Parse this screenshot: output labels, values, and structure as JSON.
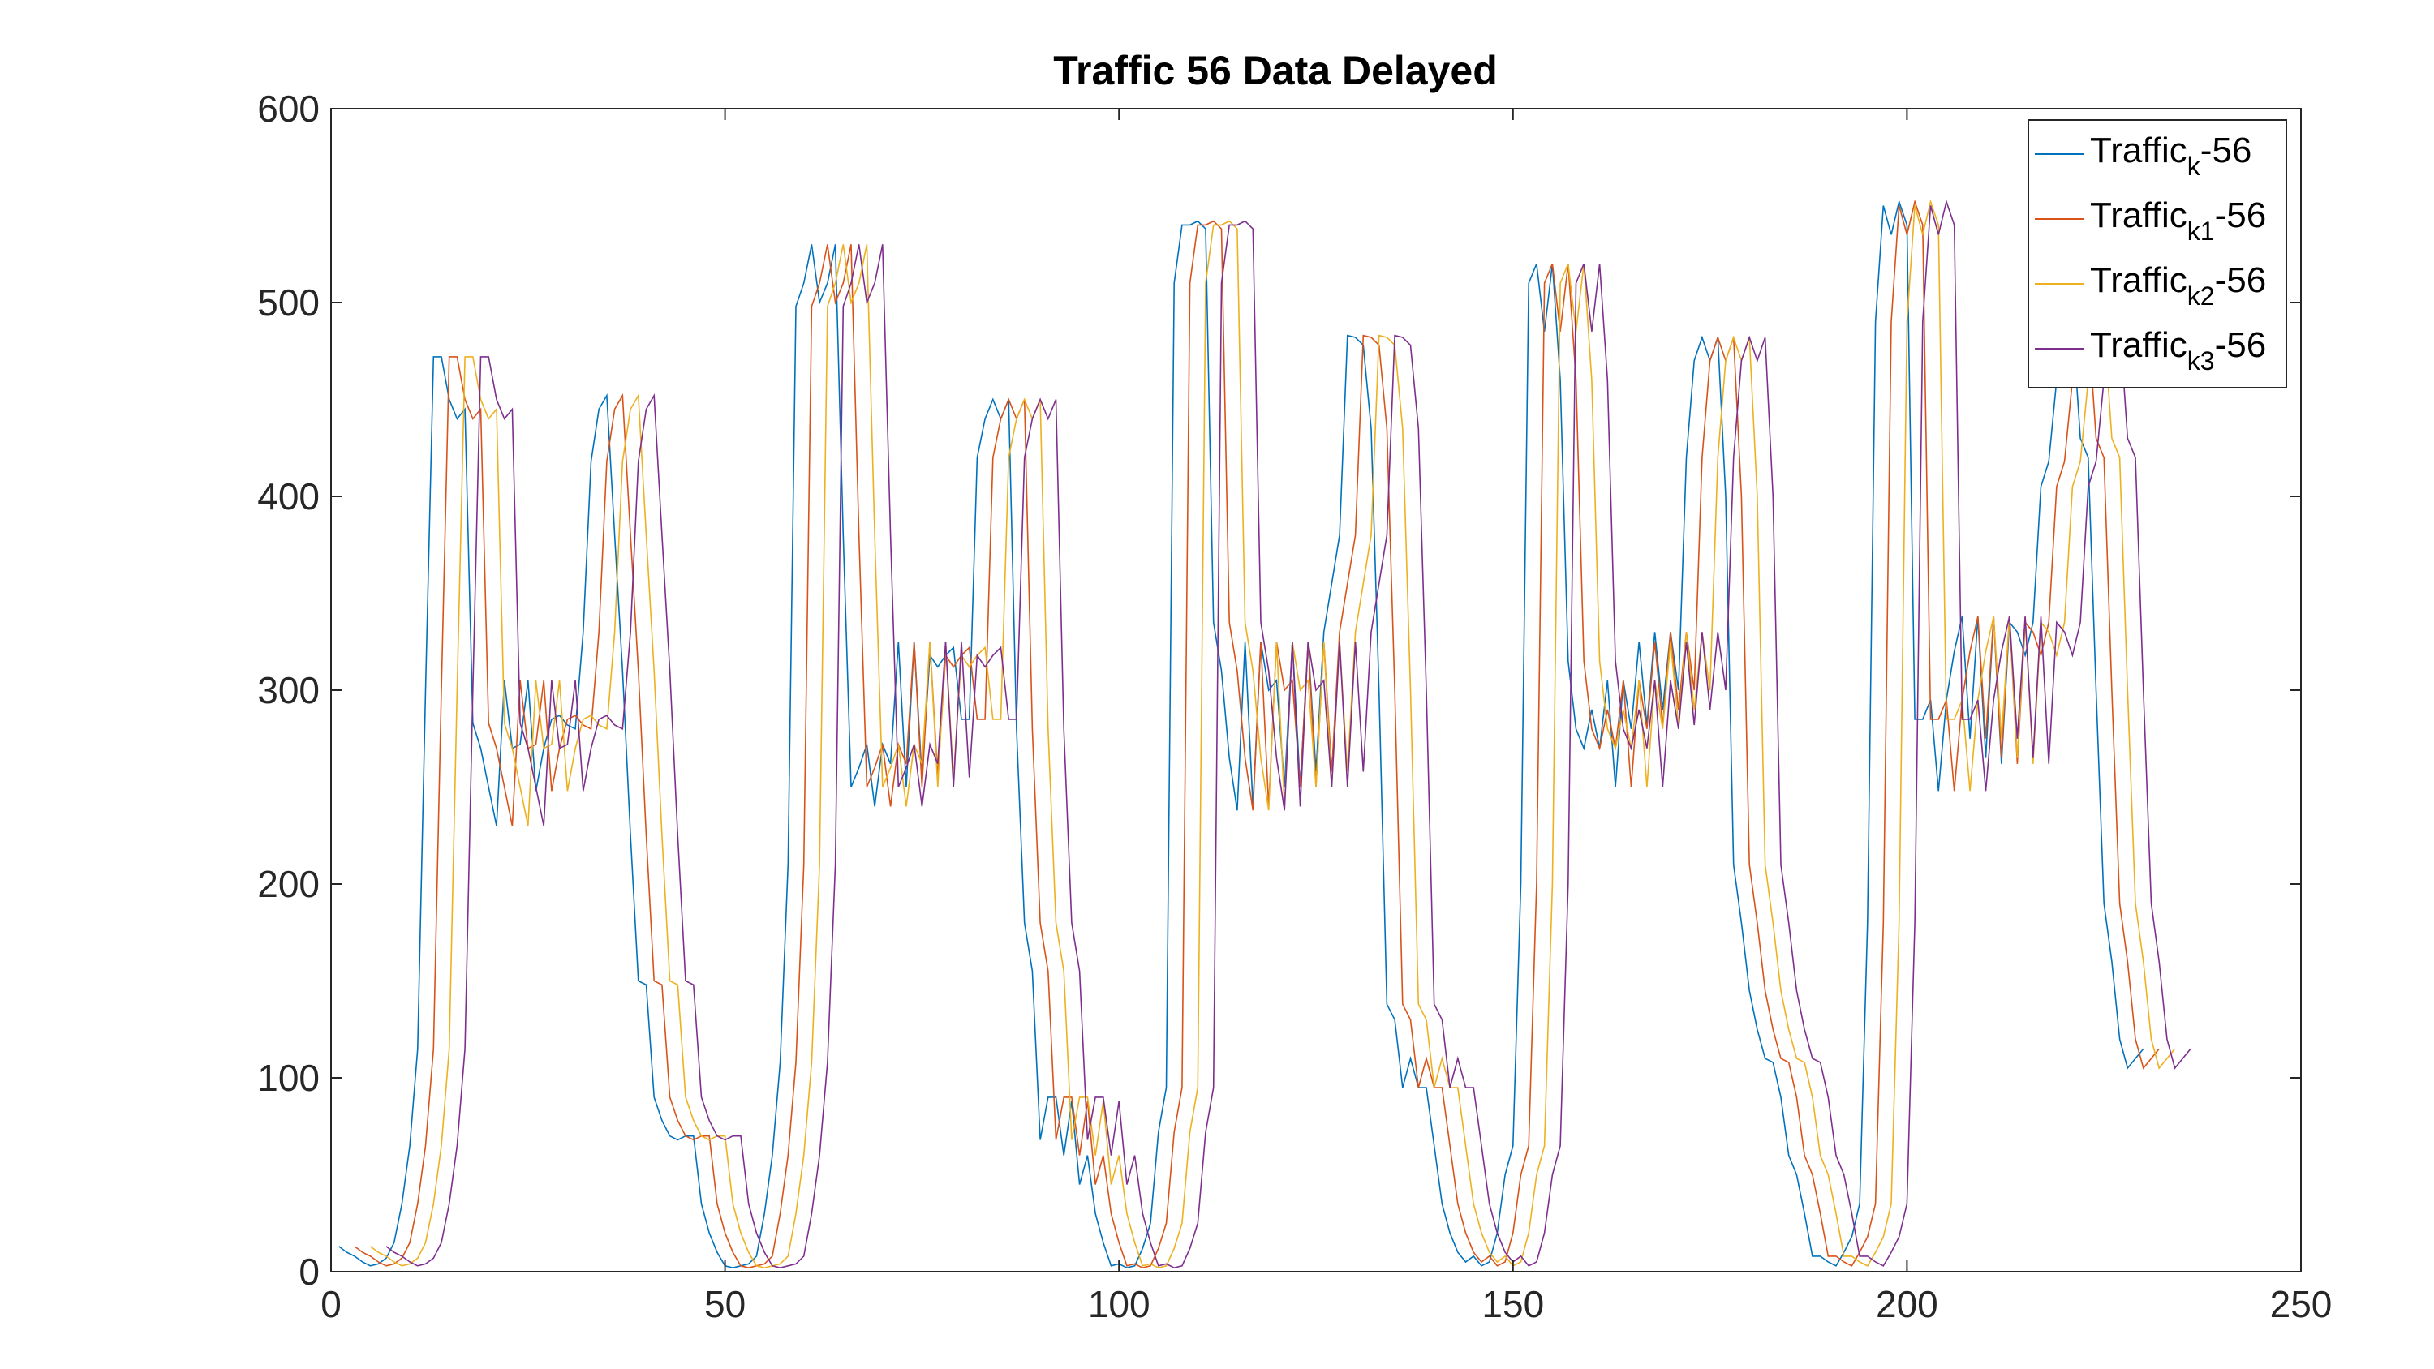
{
  "chart_data": {
    "type": "line",
    "title": "Traffic 56 Data Delayed",
    "xlabel": "",
    "ylabel": "",
    "xlim": [
      0,
      250
    ],
    "ylim": [
      0,
      600
    ],
    "x_ticks": [
      "0",
      "50",
      "100",
      "150",
      "200",
      "250"
    ],
    "y_ticks": [
      "0",
      "100",
      "200",
      "300",
      "400",
      "500",
      "600"
    ],
    "grid": false,
    "legend_position": "top-right",
    "colors": [
      "#0072BD",
      "#D95319",
      "#EDB120",
      "#7E2F8E"
    ],
    "base_series": [
      [
        1,
        13
      ],
      [
        2,
        10
      ],
      [
        3,
        8
      ],
      [
        4,
        5
      ],
      [
        5,
        3
      ],
      [
        6,
        4
      ],
      [
        7,
        7
      ],
      [
        8,
        15
      ],
      [
        9,
        35
      ],
      [
        10,
        65
      ],
      [
        11,
        115
      ],
      [
        12,
        300
      ],
      [
        13,
        472
      ],
      [
        14,
        472
      ],
      [
        15,
        450
      ],
      [
        16,
        440
      ],
      [
        17,
        445
      ],
      [
        18,
        283
      ],
      [
        19,
        270
      ],
      [
        20,
        250
      ],
      [
        21,
        230
      ],
      [
        22,
        305
      ],
      [
        23,
        270
      ],
      [
        24,
        272
      ],
      [
        25,
        305
      ],
      [
        26,
        248
      ],
      [
        27,
        270
      ],
      [
        28,
        285
      ],
      [
        29,
        287
      ],
      [
        30,
        282
      ],
      [
        31,
        280
      ],
      [
        32,
        330
      ],
      [
        33,
        418
      ],
      [
        34,
        445
      ],
      [
        35,
        452
      ],
      [
        36,
        380
      ],
      [
        37,
        310
      ],
      [
        38,
        225
      ],
      [
        39,
        150
      ],
      [
        40,
        148
      ],
      [
        41,
        90
      ],
      [
        42,
        78
      ],
      [
        43,
        70
      ],
      [
        44,
        68
      ],
      [
        45,
        70
      ],
      [
        46,
        70
      ],
      [
        47,
        35
      ],
      [
        48,
        20
      ],
      [
        49,
        10
      ],
      [
        50,
        3
      ],
      [
        51,
        2
      ],
      [
        52,
        3
      ],
      [
        53,
        4
      ],
      [
        54,
        8
      ],
      [
        55,
        30
      ],
      [
        56,
        60
      ],
      [
        57,
        108
      ],
      [
        58,
        210
      ],
      [
        59,
        498
      ],
      [
        60,
        510
      ],
      [
        61,
        530
      ],
      [
        62,
        500
      ],
      [
        63,
        510
      ],
      [
        64,
        530
      ],
      [
        65,
        380
      ],
      [
        66,
        250
      ],
      [
        67,
        260
      ],
      [
        68,
        272
      ],
      [
        69,
        240
      ],
      [
        70,
        272
      ],
      [
        71,
        262
      ],
      [
        72,
        325
      ],
      [
        73,
        250
      ],
      [
        74,
        325
      ],
      [
        75,
        255
      ],
      [
        76,
        318
      ],
      [
        77,
        312
      ],
      [
        78,
        318
      ],
      [
        79,
        322
      ],
      [
        80,
        285
      ],
      [
        81,
        285
      ],
      [
        82,
        420
      ],
      [
        83,
        440
      ],
      [
        84,
        450
      ],
      [
        85,
        440
      ],
      [
        86,
        450
      ],
      [
        87,
        280
      ],
      [
        88,
        180
      ],
      [
        89,
        155
      ],
      [
        90,
        68
      ],
      [
        91,
        90
      ],
      [
        92,
        90
      ],
      [
        93,
        60
      ],
      [
        94,
        88
      ],
      [
        95,
        45
      ],
      [
        96,
        60
      ],
      [
        97,
        30
      ],
      [
        98,
        15
      ],
      [
        99,
        3
      ],
      [
        100,
        4
      ],
      [
        101,
        2
      ],
      [
        102,
        3
      ],
      [
        103,
        12
      ],
      [
        104,
        25
      ],
      [
        105,
        72
      ],
      [
        106,
        95
      ],
      [
        107,
        510
      ],
      [
        108,
        540
      ],
      [
        109,
        540
      ],
      [
        110,
        542
      ],
      [
        111,
        538
      ],
      [
        112,
        335
      ],
      [
        113,
        310
      ],
      [
        114,
        265
      ],
      [
        115,
        238
      ],
      [
        116,
        325
      ],
      [
        117,
        240
      ],
      [
        118,
        325
      ],
      [
        119,
        300
      ],
      [
        120,
        305
      ],
      [
        121,
        250
      ],
      [
        122,
        325
      ],
      [
        123,
        250
      ],
      [
        124,
        325
      ],
      [
        125,
        258
      ],
      [
        126,
        330
      ],
      [
        127,
        355
      ],
      [
        128,
        380
      ],
      [
        129,
        483
      ],
      [
        130,
        482
      ],
      [
        131,
        478
      ],
      [
        132,
        435
      ],
      [
        133,
        300
      ],
      [
        134,
        138
      ],
      [
        135,
        130
      ],
      [
        136,
        95
      ],
      [
        137,
        110
      ],
      [
        138,
        95
      ],
      [
        139,
        95
      ],
      [
        140,
        65
      ],
      [
        141,
        35
      ],
      [
        142,
        20
      ],
      [
        143,
        10
      ],
      [
        144,
        5
      ],
      [
        145,
        8
      ],
      [
        146,
        3
      ],
      [
        147,
        5
      ],
      [
        148,
        20
      ],
      [
        149,
        50
      ],
      [
        150,
        65
      ],
      [
        151,
        200
      ],
      [
        152,
        510
      ],
      [
        153,
        520
      ],
      [
        154,
        485
      ],
      [
        155,
        520
      ],
      [
        156,
        460
      ],
      [
        157,
        315
      ],
      [
        158,
        280
      ],
      [
        159,
        270
      ],
      [
        160,
        290
      ],
      [
        161,
        270
      ],
      [
        162,
        305
      ],
      [
        163,
        250
      ],
      [
        164,
        305
      ],
      [
        165,
        280
      ],
      [
        166,
        325
      ],
      [
        167,
        282
      ],
      [
        168,
        330
      ],
      [
        169,
        290
      ],
      [
        170,
        330
      ],
      [
        171,
        300
      ],
      [
        172,
        420
      ],
      [
        173,
        470
      ],
      [
        174,
        482
      ],
      [
        175,
        470
      ],
      [
        176,
        482
      ],
      [
        177,
        400
      ],
      [
        178,
        210
      ],
      [
        179,
        180
      ],
      [
        180,
        145
      ],
      [
        181,
        125
      ],
      [
        182,
        110
      ],
      [
        183,
        108
      ],
      [
        184,
        90
      ],
      [
        185,
        60
      ],
      [
        186,
        50
      ],
      [
        187,
        30
      ],
      [
        188,
        8
      ],
      [
        189,
        8
      ],
      [
        190,
        5
      ],
      [
        191,
        3
      ],
      [
        192,
        10
      ],
      [
        193,
        18
      ],
      [
        194,
        35
      ],
      [
        195,
        180
      ],
      [
        196,
        490
      ],
      [
        197,
        550
      ],
      [
        198,
        535
      ],
      [
        199,
        552
      ],
      [
        200,
        540
      ],
      [
        201,
        285
      ],
      [
        202,
        285
      ],
      [
        203,
        295
      ],
      [
        204,
        248
      ],
      [
        205,
        295
      ],
      [
        206,
        320
      ],
      [
        207,
        338
      ],
      [
        208,
        275
      ],
      [
        209,
        338
      ],
      [
        210,
        265
      ],
      [
        211,
        338
      ],
      [
        212,
        262
      ],
      [
        213,
        335
      ],
      [
        214,
        330
      ],
      [
        215,
        318
      ],
      [
        216,
        335
      ],
      [
        217,
        405
      ],
      [
        218,
        418
      ],
      [
        219,
        460
      ],
      [
        220,
        550
      ],
      [
        221,
        490
      ],
      [
        222,
        430
      ],
      [
        223,
        420
      ],
      [
        224,
        300
      ],
      [
        225,
        190
      ],
      [
        226,
        160
      ],
      [
        227,
        120
      ],
      [
        228,
        105
      ],
      [
        229,
        110
      ],
      [
        230,
        115
      ]
    ],
    "series": [
      {
        "name": "Traffic_k-56",
        "delay": 0
      },
      {
        "name": "Traffic_k1-56",
        "delay": 2
      },
      {
        "name": "Traffic_k2-56",
        "delay": 4
      },
      {
        "name": "Traffic_k3-56",
        "delay": 6
      }
    ],
    "legend": [
      {
        "base": "Traffic",
        "sub": "k",
        "suffix": "-56"
      },
      {
        "base": "Traffic",
        "sub": "k1",
        "suffix": "-56"
      },
      {
        "base": "Traffic",
        "sub": "k2",
        "suffix": "-56"
      },
      {
        "base": "Traffic",
        "sub": "k3",
        "suffix": "-56"
      }
    ]
  }
}
